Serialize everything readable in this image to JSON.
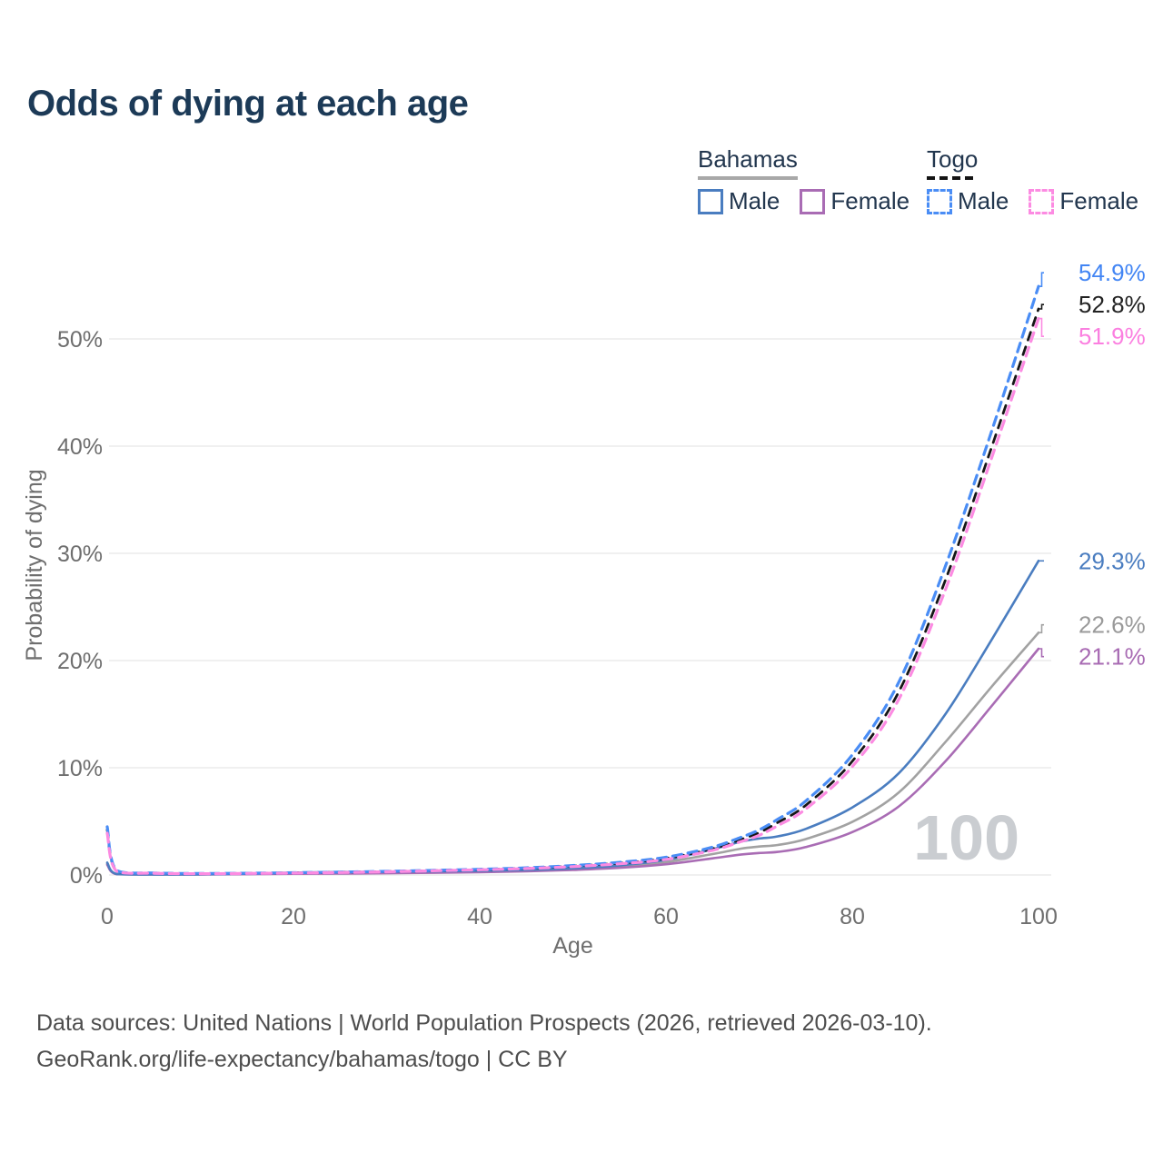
{
  "title": "Odds of dying at each age",
  "legend": {
    "groups": [
      {
        "country": "Bahamas",
        "line_style": "solid",
        "underline_color": "#a8a8a8",
        "items": [
          {
            "label": "Male",
            "color": "#4a7dc0"
          },
          {
            "label": "Female",
            "color": "#a96cb4"
          }
        ]
      },
      {
        "country": "Togo",
        "line_style": "dashed",
        "underline_color": "#141414",
        "items": [
          {
            "label": "Male",
            "color": "#4a8df5"
          },
          {
            "label": "Female",
            "color": "#fc8be2"
          }
        ]
      }
    ]
  },
  "watermark_age": "100",
  "footer": {
    "line1": "Data sources: United Nations | World Population Prospects (2026, retrieved 2026-03-10).",
    "line2": "GeoRank.org/life-expectancy/bahamas/togo | CC BY"
  },
  "chart_data": {
    "type": "line",
    "title": "Odds of dying at each age",
    "xlabel": "Age",
    "ylabel": "Probability of dying",
    "x_ticks": [
      0,
      20,
      40,
      60,
      80,
      100
    ],
    "y_ticks": [
      "0%",
      "10%",
      "20%",
      "30%",
      "40%",
      "50%"
    ],
    "y_tick_values": [
      0,
      10,
      20,
      30,
      40,
      50
    ],
    "xlim": [
      0,
      100
    ],
    "ylim": [
      0,
      56
    ],
    "grid": "horizontal-only",
    "legend_position": "top-right",
    "ages": [
      0,
      1,
      5,
      10,
      15,
      20,
      25,
      30,
      35,
      40,
      45,
      50,
      55,
      60,
      65,
      68,
      70,
      72,
      75,
      80,
      85,
      90,
      95,
      100
    ],
    "series": [
      {
        "id": "bahamas-total",
        "country": "Bahamas",
        "sex": "Total",
        "flag": "bahamas",
        "color": "#a2a2a2",
        "label_color": "#9a9a9a",
        "dashed": false,
        "end_label": "22.6%",
        "values": [
          1.05,
          0.085,
          0.045,
          0.055,
          0.1,
          0.16,
          0.2,
          0.23,
          0.26,
          0.31,
          0.4,
          0.54,
          0.78,
          1.2,
          1.95,
          2.45,
          2.65,
          2.8,
          3.35,
          4.95,
          7.7,
          12.4,
          17.6,
          22.6
        ]
      },
      {
        "id": "bahamas-female",
        "country": "Bahamas",
        "sex": "Female",
        "flag": "bahamas",
        "color": "#a96cb4",
        "label_color": "#a86bb3",
        "dashed": false,
        "end_label": "21.1%",
        "values": [
          0.95,
          0.08,
          0.04,
          0.05,
          0.08,
          0.11,
          0.13,
          0.16,
          0.2,
          0.26,
          0.34,
          0.47,
          0.67,
          1.0,
          1.55,
          1.9,
          2.05,
          2.15,
          2.6,
          4.0,
          6.4,
          10.6,
          15.8,
          21.1
        ]
      },
      {
        "id": "bahamas-male",
        "country": "Bahamas",
        "sex": "Male",
        "flag": "bahamas",
        "color": "#4a7dc0",
        "label_color": "#4a7dc0",
        "dashed": false,
        "end_label": "29.3%",
        "values": [
          1.15,
          0.09,
          0.05,
          0.06,
          0.12,
          0.22,
          0.28,
          0.3,
          0.33,
          0.38,
          0.47,
          0.62,
          0.9,
          1.4,
          2.4,
          3.1,
          3.4,
          3.6,
          4.3,
          6.3,
          9.5,
          15.0,
          22.0,
          29.3
        ]
      },
      {
        "id": "togo-total",
        "country": "Togo",
        "sex": "Total",
        "flag": "togo",
        "color": "#161616",
        "label_color": "#222222",
        "dashed": true,
        "end_label": "52.8%",
        "values": [
          4.2,
          0.39,
          0.17,
          0.13,
          0.15,
          0.2,
          0.25,
          0.32,
          0.41,
          0.5,
          0.63,
          0.83,
          1.1,
          1.55,
          2.45,
          3.3,
          3.95,
          4.9,
          6.5,
          10.6,
          17.1,
          27.5,
          40.0,
          52.8
        ]
      },
      {
        "id": "togo-male",
        "country": "Togo",
        "sex": "Male",
        "flag": "togo",
        "color": "#4a8df5",
        "label_color": "#4285f4",
        "dashed": true,
        "end_label": "54.9%",
        "values": [
          4.5,
          0.42,
          0.18,
          0.14,
          0.16,
          0.21,
          0.27,
          0.34,
          0.43,
          0.53,
          0.67,
          0.88,
          1.18,
          1.65,
          2.6,
          3.5,
          4.2,
          5.2,
          6.9,
          11.2,
          18.0,
          28.8,
          41.5,
          54.9
        ]
      },
      {
        "id": "togo-female",
        "country": "Togo",
        "sex": "Female",
        "flag": "togo",
        "color": "#fc8be2",
        "label_color": "#fb7fe0",
        "dashed": true,
        "end_label": "51.9%",
        "values": [
          3.9,
          0.36,
          0.16,
          0.12,
          0.14,
          0.18,
          0.23,
          0.3,
          0.39,
          0.48,
          0.6,
          0.78,
          1.04,
          1.45,
          2.3,
          3.1,
          3.7,
          4.6,
          6.15,
          10.1,
          16.4,
          26.6,
          39.0,
          51.9
        ]
      }
    ]
  }
}
